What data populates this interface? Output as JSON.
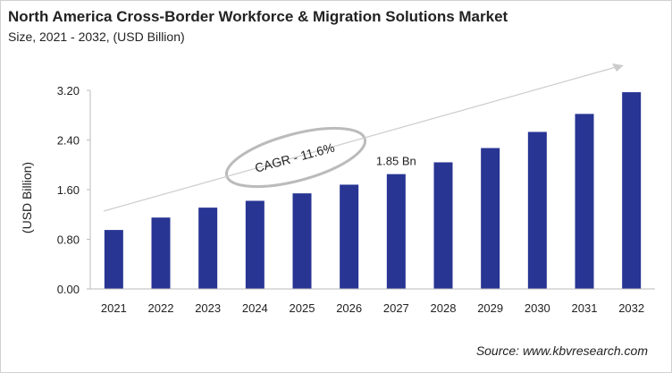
{
  "chart_data": {
    "type": "bar",
    "title": "North America Cross-Border Workforce & Migration Solutions Market",
    "subtitle": "Size, 2021 - 2032, (USD Billion)",
    "xlabel": "",
    "ylabel": "(USD Billion)",
    "ylim": [
      0,
      3.2
    ],
    "yticks": [
      "0.00",
      "0.80",
      "1.60",
      "2.40",
      "3.20"
    ],
    "grid": false,
    "categories": [
      "2021",
      "2022",
      "2023",
      "2024",
      "2025",
      "2026",
      "2027",
      "2028",
      "2029",
      "2030",
      "2031",
      "2032"
    ],
    "values": [
      0.95,
      1.15,
      1.31,
      1.42,
      1.54,
      1.68,
      1.85,
      2.04,
      2.27,
      2.53,
      2.82,
      3.17
    ],
    "bar_color": "#283593",
    "data_label": {
      "category": "2027",
      "text": "1.85 Bn"
    },
    "annotation": "CAGR - 11.6%",
    "source": "Source: www.kbvresearch.com"
  }
}
